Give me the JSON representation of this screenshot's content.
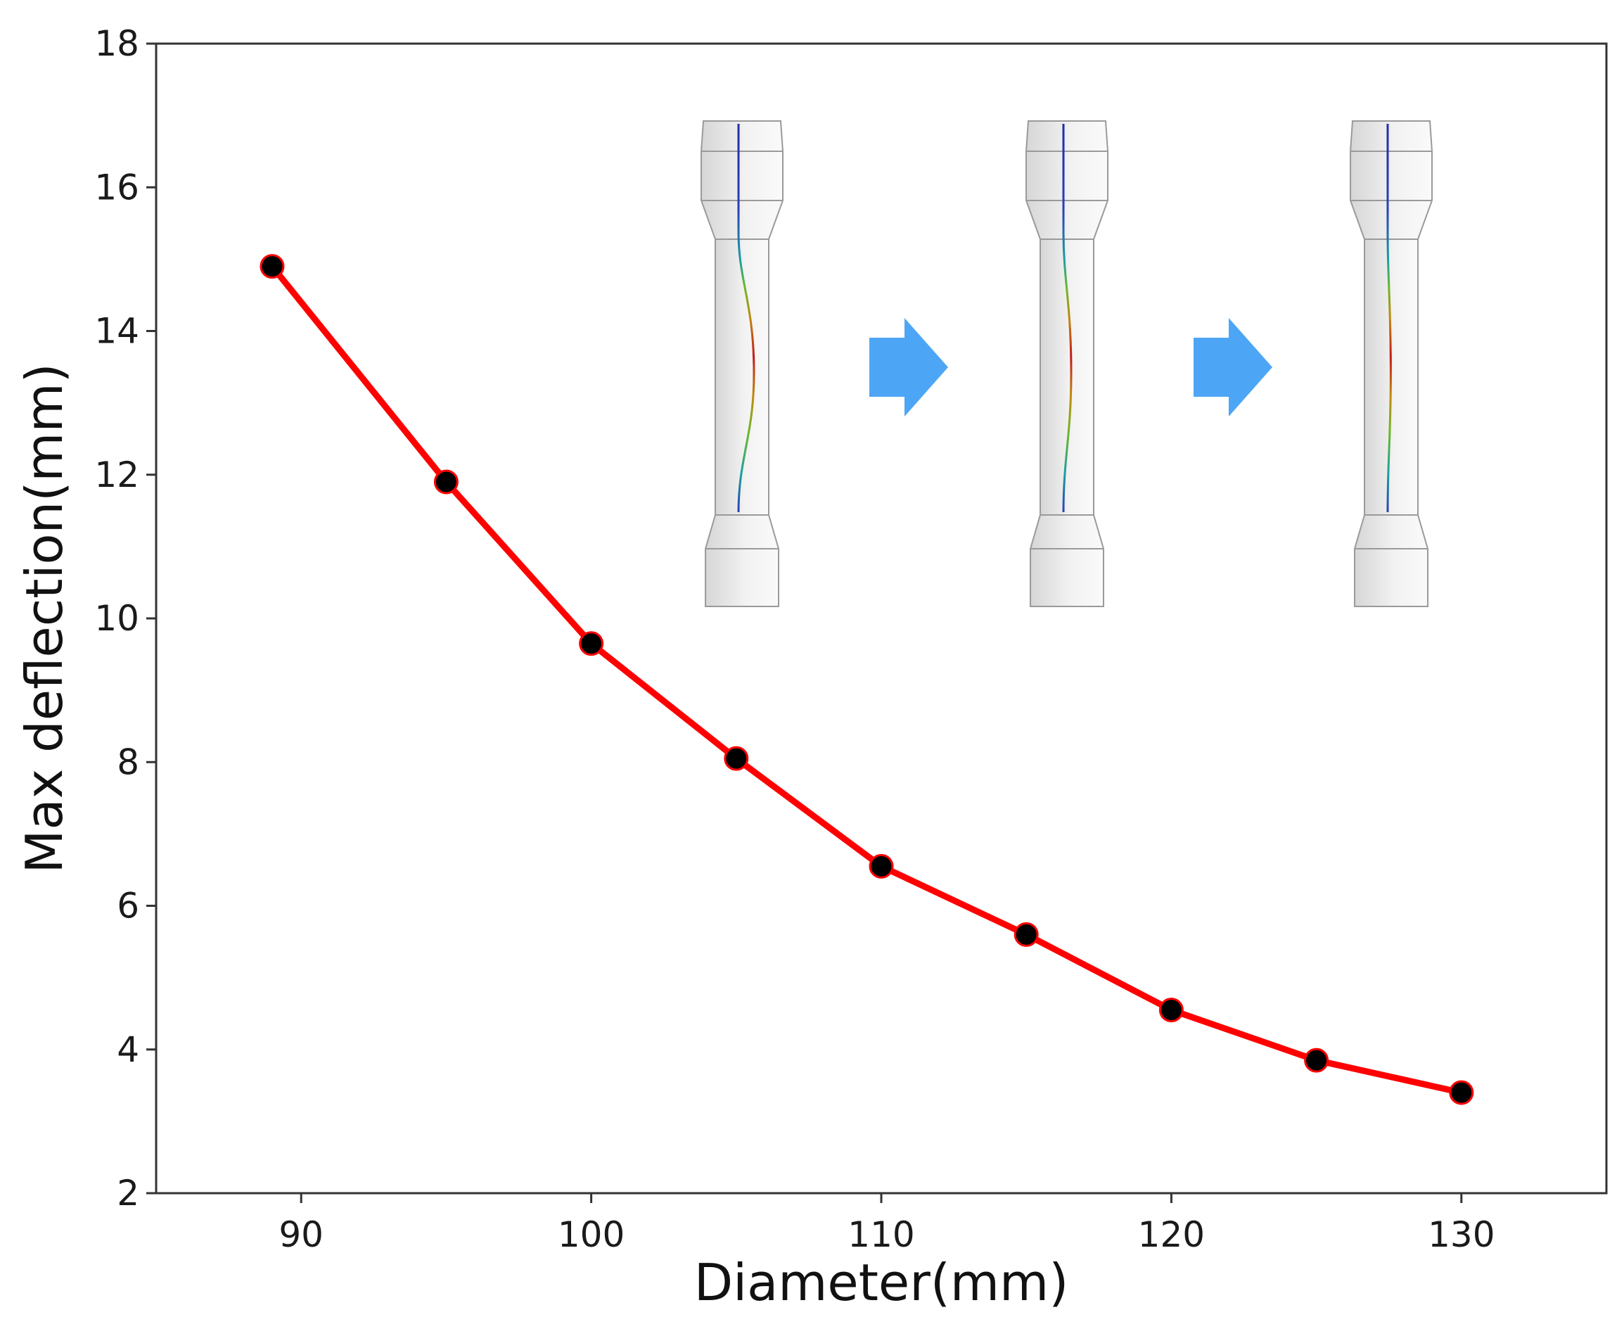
{
  "chart_data": {
    "type": "line",
    "title": "",
    "xlabel": "Diameter(mm)",
    "ylabel": "Max deflection(mm)",
    "xlim": [
      85,
      135
    ],
    "ylim": [
      2,
      18
    ],
    "xticks": [
      90,
      100,
      110,
      120,
      130
    ],
    "yticks": [
      2,
      4,
      6,
      8,
      10,
      12,
      14,
      16,
      18
    ],
    "grid": false,
    "legend": "none",
    "series": [
      {
        "x": [
          89,
          95,
          100,
          105,
          110,
          115,
          120,
          125,
          130
        ],
        "y": [
          14.9,
          11.9,
          9.65,
          8.05,
          6.55,
          5.6,
          4.55,
          3.85,
          3.4
        ],
        "line_color": "#ff0000",
        "marker_color": "#000000",
        "marker": "circle"
      }
    ],
    "inset": {
      "description_icons": [
        "buckled-column-icon",
        "arrow-right-icon",
        "buckled-column-icon",
        "arrow-right-icon",
        "buckled-column-icon"
      ],
      "column_deflection_fraction": [
        1.0,
        0.5,
        0.2
      ],
      "arrow_color": "#4da6f5"
    }
  }
}
